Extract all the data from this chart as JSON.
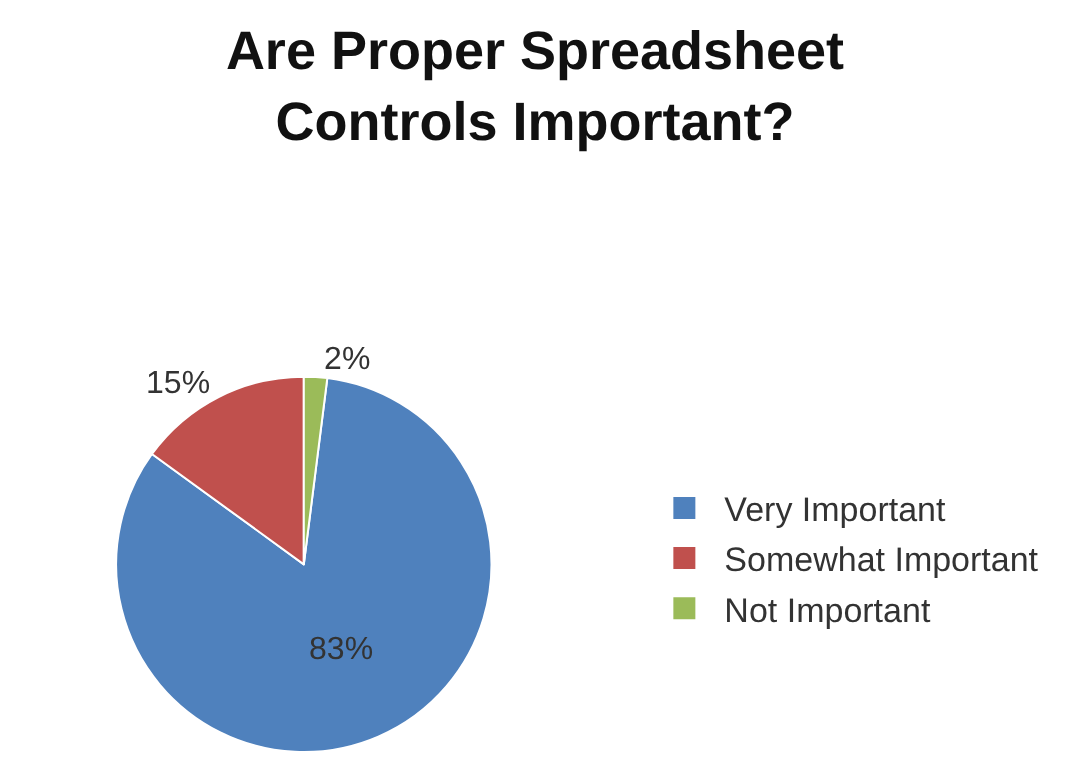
{
  "chart_data": {
    "type": "pie",
    "title": "Are Proper Spreadsheet\nControls Important?",
    "categories": [
      "Very Important",
      "Somewhat Important",
      "Not Important"
    ],
    "values": [
      83,
      15,
      2
    ],
    "colors": [
      "#4f81bd",
      "#c0504d",
      "#9bbb59"
    ],
    "value_labels": [
      "83%",
      "15%",
      "2%"
    ],
    "legend": "right"
  }
}
